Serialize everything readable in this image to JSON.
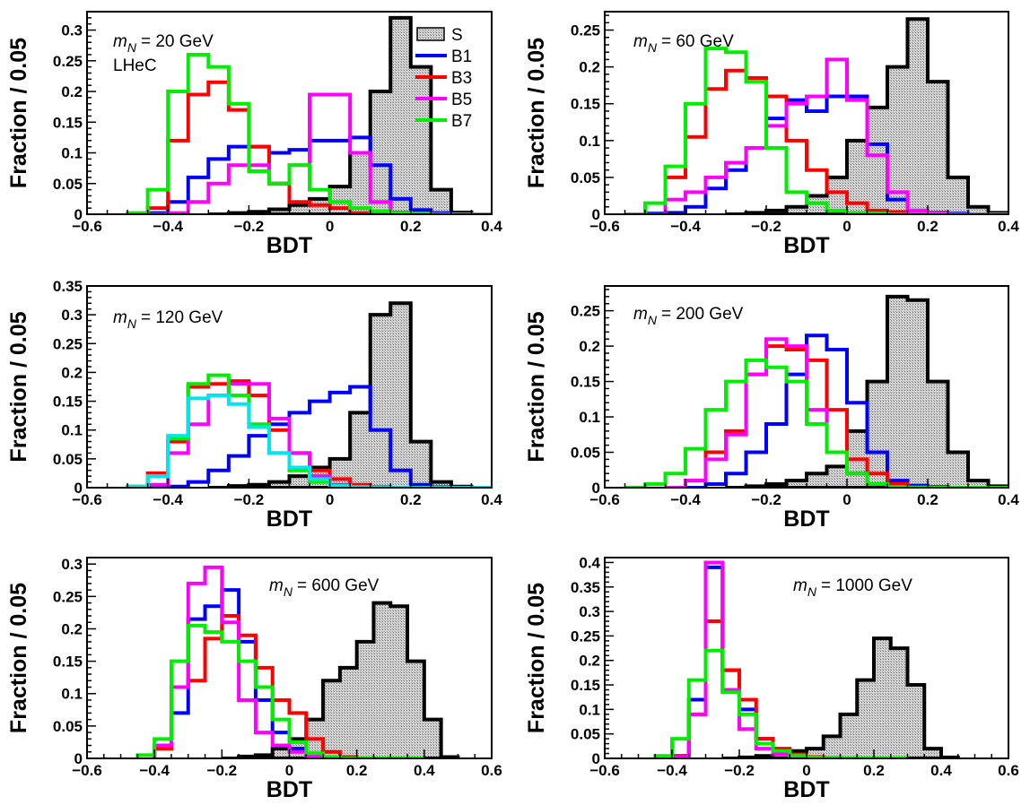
{
  "chart_data": [
    {
      "type": "histogram",
      "xlabel": "BDT",
      "ylabel": "Fraction / 0.05",
      "xlim": [
        -0.6,
        0.4
      ],
      "ylim": [
        0,
        0.33
      ],
      "xticks": [
        "−0.6",
        "−0.4",
        "−0.2",
        "0",
        "0.2",
        "0.4"
      ],
      "yticks": [
        "0",
        "0.05",
        "0.1",
        "0.15",
        "0.2",
        "0.25",
        "0.3"
      ],
      "annotation": "= 20 GeV",
      "mass_symbol": "m",
      "mass_subscript": "N",
      "extra_label": "LHeC",
      "legend_position": "top-right",
      "series": [
        {
          "name": "S",
          "color": "#000000",
          "fill": true,
          "x0": -0.3,
          "values": [
            0.0,
            0.002,
            0.004,
            0.008,
            0.015,
            0.025,
            0.045,
            0.1,
            0.2,
            0.32,
            0.24,
            0.04,
            0.003,
            0.0
          ]
        },
        {
          "name": "B1",
          "color": "#0000ff",
          "x0": -0.5,
          "values": [
            0.0,
            0.002,
            0.02,
            0.06,
            0.09,
            0.11,
            0.11,
            0.1,
            0.105,
            0.12,
            0.12,
            0.125,
            0.08,
            0.025,
            0.007,
            0.002,
            0.0,
            0.0
          ]
        },
        {
          "name": "B3",
          "color": "#ff0000",
          "x0": -0.45,
          "values": [
            0.01,
            0.12,
            0.195,
            0.215,
            0.17,
            0.11,
            0.05,
            0.02,
            0.015,
            0.01,
            0.002,
            0.002,
            0.0,
            0.0,
            0.0,
            0.0,
            0.0
          ]
        },
        {
          "name": "B5",
          "color": "#ff00ff",
          "x0": -0.45,
          "values": [
            0.0,
            0.002,
            0.02,
            0.05,
            0.08,
            0.08,
            0.05,
            0.08,
            0.195,
            0.195,
            0.1,
            0.02,
            0.003,
            0.0,
            0.0,
            0.0,
            0.0
          ]
        },
        {
          "name": "B7",
          "color": "#00ee00",
          "x0": -0.5,
          "values": [
            0.002,
            0.04,
            0.2,
            0.26,
            0.24,
            0.18,
            0.07,
            0.05,
            0.08,
            0.04,
            0.02,
            0.01,
            0.005,
            0.002,
            0.001,
            0.0,
            0.0,
            0.0
          ]
        }
      ]
    },
    {
      "type": "histogram",
      "xlabel": "BDT",
      "ylabel": "Fraction / 0.05",
      "xlim": [
        -0.6,
        0.4
      ],
      "ylim": [
        0,
        0.275
      ],
      "xticks": [
        "−0.6",
        "−0.4",
        "−0.2",
        "0",
        "0.2",
        "0.4"
      ],
      "yticks": [
        "0",
        "0.05",
        "0.1",
        "0.15",
        "0.2",
        "0.25"
      ],
      "annotation": "= 60 GeV",
      "mass_symbol": "m",
      "mass_subscript": "N",
      "series": [
        {
          "name": "S",
          "color": "#000000",
          "fill": true,
          "x0": -0.3,
          "values": [
            0.0,
            0.002,
            0.005,
            0.01,
            0.025,
            0.05,
            0.1,
            0.145,
            0.2,
            0.265,
            0.18,
            0.05,
            0.01,
            0.002
          ]
        },
        {
          "name": "B1",
          "color": "#0000ff",
          "x0": -0.55,
          "values": [
            0.0,
            0.001,
            0.002,
            0.01,
            0.035,
            0.06,
            0.09,
            0.13,
            0.155,
            0.14,
            0.16,
            0.16,
            0.095,
            0.02,
            0.005,
            0.002,
            0.001,
            0.0,
            0.0
          ]
        },
        {
          "name": "B3",
          "color": "#ff0000",
          "x0": -0.5,
          "values": [
            0.0,
            0.05,
            0.105,
            0.17,
            0.195,
            0.185,
            0.16,
            0.1,
            0.06,
            0.03,
            0.015,
            0.005,
            0.003,
            0.001,
            0.0,
            0.0,
            0.0,
            0.0
          ]
        },
        {
          "name": "B5",
          "color": "#ff00ff",
          "x0": -0.45,
          "values": [
            0.02,
            0.03,
            0.05,
            0.07,
            0.09,
            0.12,
            0.15,
            0.16,
            0.21,
            0.155,
            0.08,
            0.03,
            0.005,
            0.001,
            0.0,
            0.0,
            0.0
          ]
        },
        {
          "name": "B7",
          "color": "#00ee00",
          "x0": -0.55,
          "values": [
            0.0,
            0.015,
            0.065,
            0.15,
            0.225,
            0.22,
            0.18,
            0.09,
            0.03,
            0.015,
            0.005,
            0.002,
            0.001,
            0.0,
            0.0,
            0.0,
            0.0,
            0.0,
            0.0
          ]
        }
      ]
    },
    {
      "type": "histogram",
      "xlabel": "BDT",
      "ylabel": "Fraction / 0.05",
      "xlim": [
        -0.6,
        0.4
      ],
      "ylim": [
        0,
        0.35
      ],
      "xticks": [
        "−0.6",
        "−0.4",
        "−0.2",
        "0",
        "0.2",
        "0.4"
      ],
      "yticks": [
        "0",
        "0.05",
        "0.1",
        "0.15",
        "0.2",
        "0.25",
        "0.3",
        "0.35"
      ],
      "annotation": "= 120 GeV",
      "mass_symbol": "m",
      "mass_subscript": "N",
      "series": [
        {
          "name": "S",
          "color": "#000000",
          "fill": true,
          "x0": -0.3,
          "values": [
            0.0,
            0.003,
            0.005,
            0.01,
            0.02,
            0.035,
            0.05,
            0.13,
            0.3,
            0.32,
            0.08,
            0.01,
            0.002
          ]
        },
        {
          "name": "B1",
          "color": "#0000ff",
          "x0": -0.45,
          "values": [
            0.0,
            0.002,
            0.01,
            0.03,
            0.055,
            0.09,
            0.11,
            0.13,
            0.15,
            0.165,
            0.175,
            0.1,
            0.03,
            0.005,
            0.001,
            0.0,
            0.0
          ]
        },
        {
          "name": "B3",
          "color": "#ff0000",
          "x0": -0.5,
          "values": [
            0.002,
            0.025,
            0.08,
            0.175,
            0.18,
            0.185,
            0.16,
            0.1,
            0.06,
            0.03,
            0.015,
            0.005,
            0.001,
            0.0,
            0.0,
            0.0,
            0.0,
            0.0
          ]
        },
        {
          "name": "B5",
          "color": "#ff00ff",
          "x0": -0.5,
          "values": [
            0.0,
            0.005,
            0.06,
            0.11,
            0.16,
            0.18,
            0.18,
            0.12,
            0.06,
            0.02,
            0.005,
            0.001,
            0.0,
            0.0,
            0.0,
            0.0,
            0.0,
            0.0
          ]
        },
        {
          "name": "B7",
          "color": "#00ee00",
          "x0": -0.5,
          "values": [
            0.002,
            0.02,
            0.085,
            0.18,
            0.195,
            0.16,
            0.11,
            0.06,
            0.03,
            0.01,
            0.003,
            0.001,
            0.0,
            0.0,
            0.0,
            0.0,
            0.0,
            0.0
          ]
        },
        {
          "name": "",
          "color": "#00e5ee",
          "x0": -0.5,
          "values": [
            0.002,
            0.02,
            0.09,
            0.155,
            0.16,
            0.145,
            0.105,
            0.06,
            0.035,
            0.015,
            0.003,
            0.001,
            0.0,
            0.0,
            0.0,
            0.0,
            0.0,
            0.0
          ]
        }
      ]
    },
    {
      "type": "histogram",
      "xlabel": "BDT",
      "ylabel": "Fraction / 0.05",
      "xlim": [
        -0.6,
        0.4
      ],
      "ylim": [
        0,
        0.285
      ],
      "xticks": [
        "−0.6",
        "−0.4",
        "−0.2",
        "0",
        "0.2",
        "0.4"
      ],
      "yticks": [
        "0",
        "0.05",
        "0.1",
        "0.15",
        "0.2",
        "0.25"
      ],
      "annotation": "= 200 GeV",
      "mass_symbol": "m",
      "mass_subscript": "N",
      "series": [
        {
          "name": "S",
          "color": "#000000",
          "fill": true,
          "x0": -0.3,
          "values": [
            0.0,
            0.002,
            0.005,
            0.01,
            0.02,
            0.03,
            0.08,
            0.15,
            0.27,
            0.265,
            0.15,
            0.05,
            0.01,
            0.002
          ]
        },
        {
          "name": "B1",
          "color": "#0000ff",
          "x0": -0.4,
          "values": [
            0.0,
            0.005,
            0.02,
            0.05,
            0.09,
            0.16,
            0.215,
            0.195,
            0.12,
            0.05,
            0.01,
            0.003,
            0.001,
            0.0,
            0.0,
            0.0
          ]
        },
        {
          "name": "B3",
          "color": "#ff0000",
          "x0": -0.45,
          "values": [
            0.0,
            0.01,
            0.05,
            0.08,
            0.16,
            0.2,
            0.195,
            0.18,
            0.11,
            0.04,
            0.02,
            0.005,
            0.001,
            0.0,
            0.0,
            0.0,
            0.0
          ]
        },
        {
          "name": "B5",
          "color": "#ff00ff",
          "x0": -0.45,
          "values": [
            0.0,
            0.01,
            0.04,
            0.075,
            0.16,
            0.21,
            0.2,
            0.11,
            0.05,
            0.02,
            0.005,
            0.001,
            0.0,
            0.0,
            0.0,
            0.0,
            0.0
          ]
        },
        {
          "name": "B7",
          "color": "#00ee00",
          "x0": -0.55,
          "values": [
            0.0,
            0.005,
            0.02,
            0.055,
            0.11,
            0.15,
            0.18,
            0.17,
            0.15,
            0.09,
            0.05,
            0.02,
            0.005,
            0.001,
            0.0,
            0.0,
            0.0,
            0.0,
            0.0
          ]
        }
      ]
    },
    {
      "type": "histogram",
      "xlabel": "BDT",
      "ylabel": "Fraction / 0.05",
      "xlim": [
        -0.6,
        0.6
      ],
      "ylim": [
        0,
        0.31
      ],
      "xticks": [
        "−0.6",
        "−0.4",
        "−0.2",
        "0",
        "0.2",
        "0.4",
        "0.6"
      ],
      "yticks": [
        "0",
        "0.05",
        "0.1",
        "0.15",
        "0.2",
        "0.25",
        "0.3"
      ],
      "annotation": "= 600 GeV",
      "mass_symbol": "m",
      "mass_subscript": "N",
      "series": [
        {
          "name": "S",
          "color": "#000000",
          "fill": true,
          "x0": -0.2,
          "values": [
            0.0,
            0.003,
            0.005,
            0.015,
            0.03,
            0.06,
            0.12,
            0.14,
            0.18,
            0.24,
            0.235,
            0.15,
            0.06,
            0.002
          ]
        },
        {
          "name": "B1",
          "color": "#0000ff",
          "x0": -0.4,
          "values": [
            0.015,
            0.07,
            0.215,
            0.235,
            0.26,
            0.18,
            0.09,
            0.04,
            0.015,
            0.005,
            0.001,
            0.0,
            0.0,
            0.0,
            0.0,
            0.0
          ]
        },
        {
          "name": "B3",
          "color": "#ff0000",
          "x0": -0.4,
          "values": [
            0.015,
            0.11,
            0.12,
            0.185,
            0.22,
            0.19,
            0.14,
            0.09,
            0.07,
            0.03,
            0.01,
            0.002,
            0.0,
            0.0,
            0.0,
            0.0
          ]
        },
        {
          "name": "B5",
          "color": "#ff00ff",
          "x0": -0.4,
          "values": [
            0.02,
            0.11,
            0.27,
            0.295,
            0.21,
            0.09,
            0.04,
            0.02,
            0.01,
            0.003,
            0.001,
            0.0,
            0.0,
            0.0,
            0.0,
            0.0
          ]
        },
        {
          "name": "B7",
          "color": "#00ee00",
          "x0": -0.45,
          "values": [
            0.005,
            0.03,
            0.15,
            0.205,
            0.195,
            0.18,
            0.15,
            0.11,
            0.06,
            0.025,
            0.008,
            0.002,
            0.0,
            0.0,
            0.0,
            0.0,
            0.0
          ]
        }
      ]
    },
    {
      "type": "histogram",
      "xlabel": "BDT",
      "ylabel": "Fraction / 0.05",
      "xlim": [
        -0.6,
        0.6
      ],
      "ylim": [
        0,
        0.41
      ],
      "xticks": [
        "−0.6",
        "−0.4",
        "−0.2",
        "0",
        "0.2",
        "0.4",
        "0.6"
      ],
      "yticks": [
        "0",
        "0.05",
        "0.1",
        "0.15",
        "0.2",
        "0.25",
        "0.3",
        "0.35",
        "0.4"
      ],
      "annotation": "= 1000 GeV",
      "mass_symbol": "m",
      "mass_subscript": "N",
      "series": [
        {
          "name": "S",
          "color": "#000000",
          "fill": true,
          "x0": -0.25,
          "values": [
            0.0,
            0.002,
            0.005,
            0.01,
            0.015,
            0.02,
            0.045,
            0.09,
            0.16,
            0.245,
            0.225,
            0.15,
            0.02,
            0.002
          ]
        },
        {
          "name": "B1",
          "color": "#0000ff",
          "x0": -0.4,
          "values": [
            0.005,
            0.12,
            0.39,
            0.18,
            0.1,
            0.04,
            0.015,
            0.005,
            0.002,
            0.001,
            0.0,
            0.0,
            0.0,
            0.0
          ]
        },
        {
          "name": "B3",
          "color": "#ff0000",
          "x0": -0.4,
          "values": [
            0.005,
            0.09,
            0.28,
            0.18,
            0.12,
            0.04,
            0.02,
            0.008,
            0.003,
            0.001,
            0.0,
            0.0,
            0.0,
            0.0
          ]
        },
        {
          "name": "B5",
          "color": "#ff00ff",
          "x0": -0.4,
          "values": [
            0.003,
            0.09,
            0.4,
            0.14,
            0.06,
            0.02,
            0.008,
            0.003,
            0.001,
            0.0,
            0.0,
            0.0,
            0.0,
            0.0
          ]
        },
        {
          "name": "B7",
          "color": "#00ee00",
          "x0": -0.45,
          "values": [
            0.005,
            0.04,
            0.16,
            0.22,
            0.135,
            0.09,
            0.03,
            0.015,
            0.006,
            0.002,
            0.001,
            0.0,
            0.0,
            0.0,
            0.0
          ]
        }
      ]
    }
  ]
}
